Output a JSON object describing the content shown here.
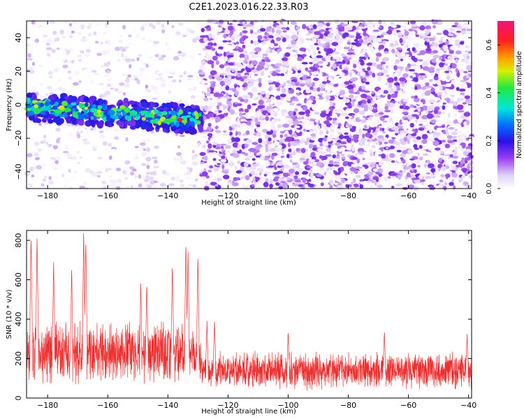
{
  "title": "C2E1.2023.016.22.33.R03",
  "chart_data": [
    {
      "type": "heatmap",
      "xlabel": "Height of straight line (km)",
      "ylabel": "Frequency (Hz)",
      "xlim": [
        -187,
        -39
      ],
      "ylim": [
        -50,
        50
      ],
      "xticks": [
        -180,
        -160,
        -140,
        -120,
        -100,
        -80,
        -60,
        -40
      ],
      "yticks": [
        -40,
        -20,
        0,
        20,
        40
      ],
      "colorbar": {
        "label": "Normalized spectral amplitude",
        "range": [
          0.0,
          0.7
        ],
        "ticks": [
          0.0,
          0.2,
          0.4,
          0.6
        ],
        "colormap": "white-purple-blue-cyan-green-yellow-red-magenta"
      },
      "features": [
        {
          "name": "signal_band",
          "x_range": [
            -187,
            -129
          ],
          "frequency_center": [
            -1,
            -9
          ],
          "amplitude_range": [
            0.15,
            0.62
          ]
        },
        {
          "name": "sparse_noise",
          "x_range": [
            -187,
            -129
          ],
          "amplitude_range": [
            0.0,
            0.08
          ]
        },
        {
          "name": "dense_noise",
          "x_range": [
            -129,
            -39
          ],
          "amplitude_range": [
            0.0,
            0.16
          ]
        }
      ],
      "grid": false
    },
    {
      "type": "line",
      "xlabel": "Height of straight line (km)",
      "ylabel": "SNR (10 * v/v)",
      "xlim": [
        -187,
        -39
      ],
      "ylim": [
        0,
        850
      ],
      "xticks": [
        -180,
        -160,
        -140,
        -120,
        -100,
        -80,
        -60,
        -40
      ],
      "yticks": [
        0,
        200,
        400,
        600,
        800
      ],
      "series": [
        {
          "color": "#ee3030",
          "envelope": [
            {
              "x_range": [
                -187,
                -129
              ],
              "base": 230,
              "spread": 170
            },
            {
              "x_range": [
                -129,
                -39
              ],
              "base": 140,
              "spread": 105
            }
          ],
          "peaks": [
            {
              "x": -185.5,
              "y": 830
            },
            {
              "x": -183.5,
              "y": 835
            },
            {
              "x": -178,
              "y": 690
            },
            {
              "x": -172,
              "y": 660
            },
            {
              "x": -168,
              "y": 850
            },
            {
              "x": -167.3,
              "y": 810
            },
            {
              "x": -149,
              "y": 590
            },
            {
              "x": -147,
              "y": 580
            },
            {
              "x": -138.5,
              "y": 690
            },
            {
              "x": -134,
              "y": 790
            },
            {
              "x": -133.3,
              "y": 760
            },
            {
              "x": -130,
              "y": 720
            },
            {
              "x": -127,
              "y": 390
            },
            {
              "x": -124.5,
              "y": 400
            },
            {
              "x": -100,
              "y": 340
            },
            {
              "x": -68,
              "y": 340
            },
            {
              "x": -40.5,
              "y": 330
            }
          ]
        }
      ],
      "grid": false
    }
  ]
}
